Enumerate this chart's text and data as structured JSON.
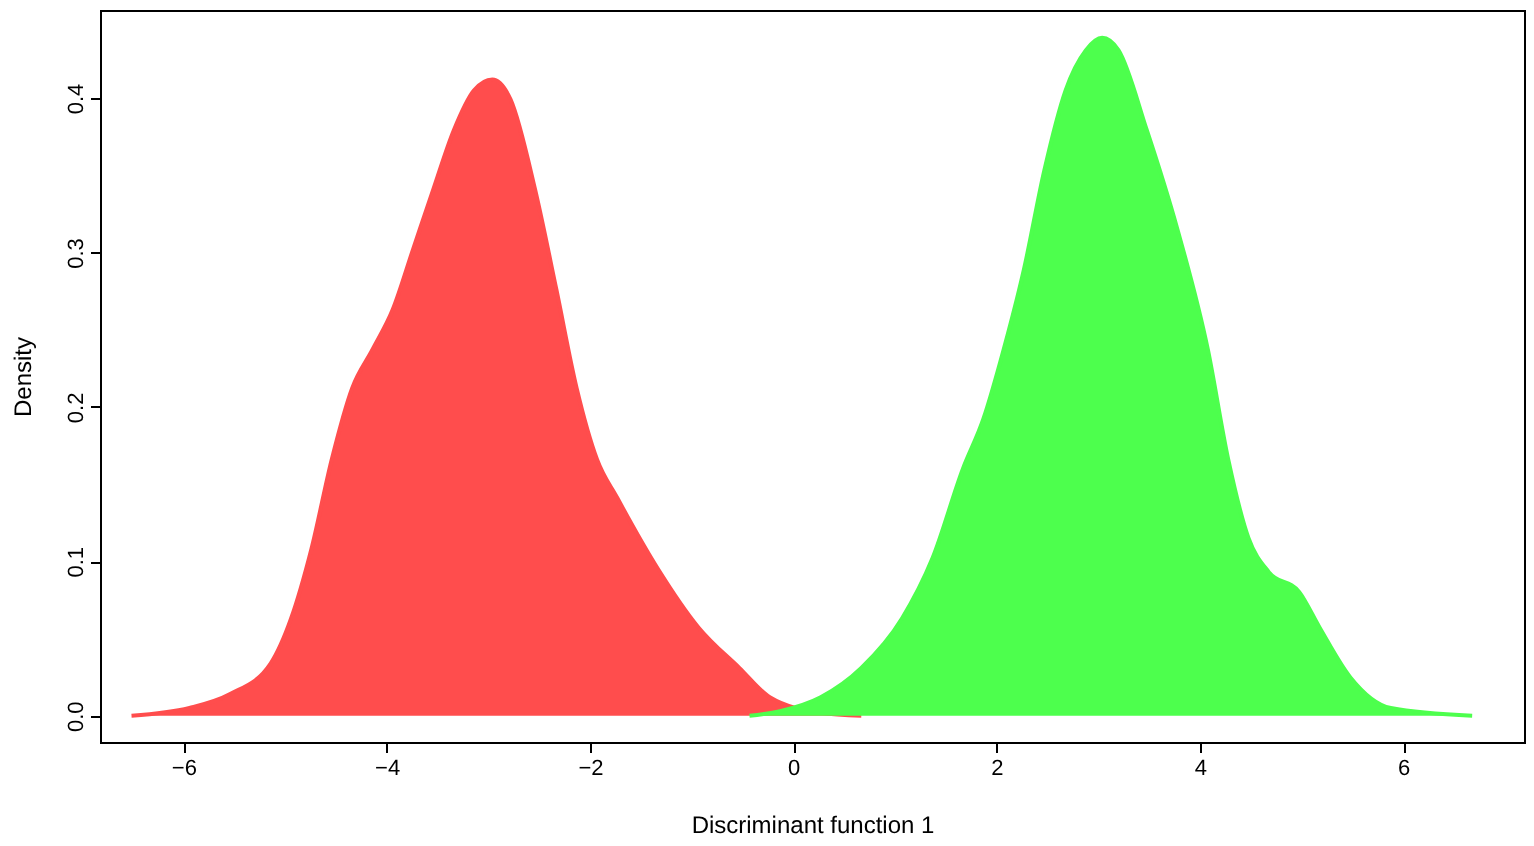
{
  "chart_data": {
    "type": "area",
    "xlabel": "Discriminant function 1",
    "ylabel": "Density",
    "xlim": [
      -6.82,
      7.19
    ],
    "ylim": [
      -0.017,
      0.457
    ],
    "xticks": [
      -6,
      -4,
      -2,
      0,
      2,
      4,
      6
    ],
    "yticks": [
      {
        "value": 0,
        "label": "0.0"
      },
      0.1,
      0.2,
      0.3,
      0.4
    ],
    "grid": false,
    "legend": false,
    "series": [
      {
        "color": "#ff4d4d",
        "x": [
          -6.51,
          -5.94,
          -5.54,
          -5.14,
          -4.94,
          -4.74,
          -4.54,
          -4.34,
          -4.14,
          -3.94,
          -3.74,
          -3.54,
          -3.34,
          -3.14,
          -2.96,
          -2.78,
          -2.54,
          -2.33,
          -2.13,
          -1.93,
          -1.73,
          -1.33,
          -0.93,
          -0.53,
          -0.23,
          0.27,
          0.67
        ],
        "values": [
          0,
          0.005,
          0.014,
          0.034,
          0.063,
          0.108,
          0.166,
          0.212,
          0.237,
          0.263,
          0.302,
          0.341,
          0.379,
          0.405,
          0.412,
          0.399,
          0.341,
          0.276,
          0.212,
          0.166,
          0.141,
          0.095,
          0.057,
          0.031,
          0.012,
          0.002,
          0
        ]
      },
      {
        "color": "#4dff4d",
        "x": [
          -0.43,
          -0.13,
          0.27,
          0.67,
          1.07,
          1.37,
          1.67,
          1.87,
          2.07,
          2.27,
          2.47,
          2.68,
          2.88,
          3.04,
          3.2,
          3.48,
          3.78,
          4.08,
          4.28,
          4.48,
          4.68,
          4.98,
          5.18,
          5.48,
          5.88,
          6.68
        ],
        "values": [
          0,
          0.003,
          0.012,
          0.031,
          0.063,
          0.102,
          0.16,
          0.192,
          0.237,
          0.289,
          0.353,
          0.405,
          0.431,
          0.439,
          0.431,
          0.379,
          0.315,
          0.237,
          0.166,
          0.115,
          0.093,
          0.08,
          0.057,
          0.025,
          0.005,
          0
        ]
      }
    ]
  }
}
